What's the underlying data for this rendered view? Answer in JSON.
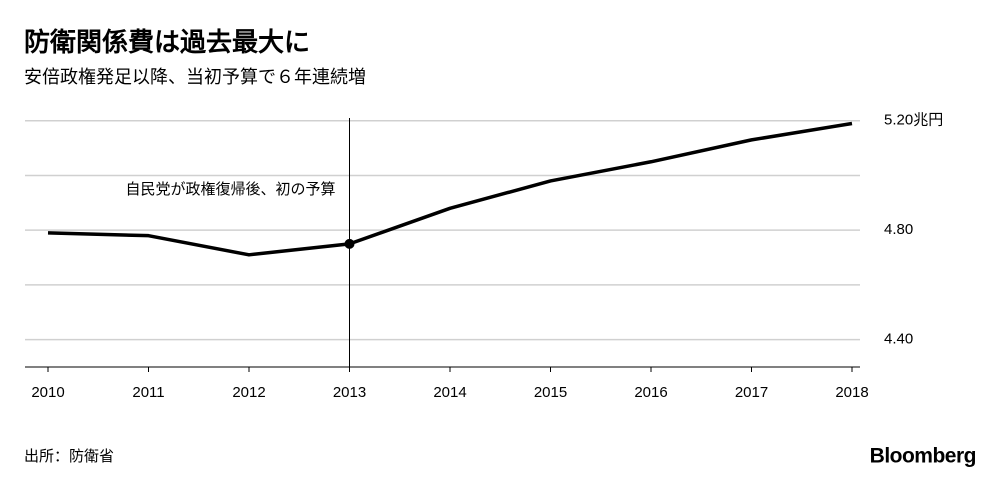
{
  "chart_data": {
    "type": "line",
    "title": "防衛関係費は過去最大に",
    "subtitle": "安倍政権発足以降、当初予算で６年連続増",
    "categories": [
      "2010",
      "2011",
      "2012",
      "2013",
      "2014",
      "2015",
      "2016",
      "2017",
      "2018"
    ],
    "values": [
      4.79,
      4.78,
      4.71,
      4.75,
      4.88,
      4.98,
      5.05,
      5.13,
      5.19
    ],
    "color": "#000000",
    "ylim": [
      4.3,
      5.21
    ],
    "yticks": [
      {
        "value": 4.4,
        "label": "4.40"
      },
      {
        "value": 4.8,
        "label": "4.80"
      },
      {
        "value": 5.2,
        "label": "5.20兆円"
      }
    ],
    "minor_yticks": [
      4.6,
      5.0
    ],
    "grid": true,
    "annotation": {
      "text": "自民党が政権復帰後、初の予算",
      "x": "2013"
    },
    "source": "出所：防衛省",
    "brand": "Bloomberg"
  }
}
